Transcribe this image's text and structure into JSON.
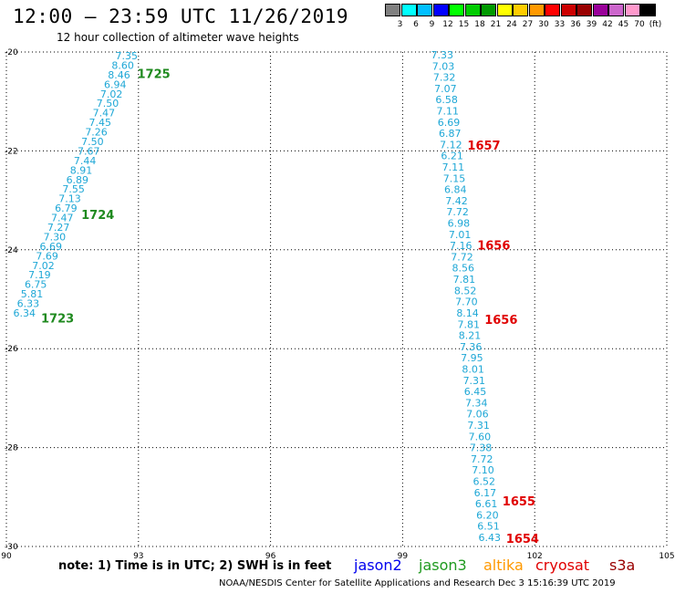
{
  "header": {
    "title": "12:00 — 23:59 UTC 11/26/2019",
    "subtitle": "12 hour collection of altimeter wave heights"
  },
  "colorbar": {
    "colors": [
      "#808080",
      "#00ffff",
      "#00bfff",
      "#0000ff",
      "#00ff00",
      "#00cc00",
      "#009900",
      "#ffff00",
      "#ffcc00",
      "#ff9900",
      "#ff0000",
      "#cc0000",
      "#990000",
      "#990099",
      "#cc66cc",
      "#ff99cc",
      "#000000"
    ],
    "labels": [
      "3",
      "6",
      "9",
      "12",
      "15",
      "18",
      "21",
      "24",
      "27",
      "30",
      "33",
      "36",
      "39",
      "42",
      "45",
      "70",
      "(ft)"
    ]
  },
  "map": {
    "lon_range": [
      90,
      105
    ],
    "lat_range": [
      -30,
      -20
    ],
    "x_ticks": [
      "90",
      "93",
      "96",
      "99",
      "102",
      "105"
    ],
    "y_ticks": [
      "-20",
      "-22",
      "-24",
      "-26",
      "-28",
      "-30"
    ],
    "wave_color": "#1ea7d6",
    "track_left": {
      "values": [
        "7.35",
        "8.60",
        "8.46",
        "6.94",
        "7.02",
        "7.50",
        "7.47",
        "7.45",
        "7.26",
        "7.50",
        "7.67",
        "7.44",
        "8.91",
        "6.89",
        "7.55",
        "7.13",
        "6.79",
        "7.47",
        "7.27",
        "7.30",
        "6.69",
        "7.69",
        "7.02",
        "7.19",
        "6.75",
        "5.81",
        "6.33",
        "6.34"
      ],
      "passes": [
        {
          "label": "1725",
          "color": "#1f8a1f",
          "lat": -20.45
        },
        {
          "label": "1724",
          "color": "#1f8a1f",
          "lat": -23.3
        },
        {
          "label": "1723",
          "color": "#1f8a1f",
          "lat": -25.4
        }
      ]
    },
    "track_right": {
      "values": [
        "7.33",
        "7.03",
        "7.32",
        "7.07",
        "6.58",
        "7.11",
        "6.69",
        "6.87",
        "7.12",
        "6.21",
        "7.11",
        "7.15",
        "6.84",
        "7.42",
        "7.72",
        "6.98",
        "7.01",
        "7.16",
        "7.72",
        "8.56",
        "7.81",
        "8.52",
        "7.70",
        "8.14",
        "7.81",
        "8.21",
        "7.36",
        "7.95",
        "8.01",
        "7.31",
        "6.45",
        "7.34",
        "7.06",
        "7.31",
        "7.60",
        "7.38",
        "7.72",
        "7.10",
        "6.52",
        "6.17",
        "6.61",
        "6.20",
        "6.51",
        "6.43"
      ],
      "passes": [
        {
          "label": "1657",
          "color": "#e00000",
          "lat": -21.9
        },
        {
          "label": "1656",
          "color": "#e00000",
          "lat": -23.92
        },
        {
          "label": "1656",
          "color": "#e00000",
          "lat": -25.42
        },
        {
          "label": "1655",
          "color": "#e00000",
          "lat": -29.1
        },
        {
          "label": "1654",
          "color": "#e00000",
          "lat": -29.85
        }
      ]
    }
  },
  "footer": {
    "note": "note: 1) Time is in UTC; 2) SWH is in feet",
    "legend": [
      {
        "label": "jason2",
        "color": "#0000ee"
      },
      {
        "label": "jason3",
        "color": "#1f9a1f"
      },
      {
        "label": "altika",
        "color": "#ff9900"
      },
      {
        "label": "cryosat",
        "color": "#e00000"
      },
      {
        "label": "s3a",
        "color": "#990000"
      }
    ],
    "credit": "NOAA/NESDIS Center for Satellite Applications and Research    Dec  3 15:16:39 UTC 2019"
  }
}
